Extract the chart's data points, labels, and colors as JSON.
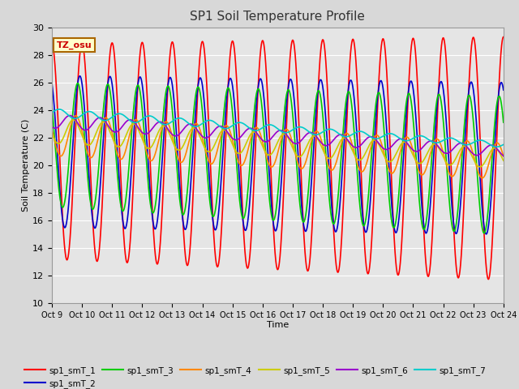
{
  "title": "SP1 Soil Temperature Profile",
  "xlabel": "Time",
  "ylabel": "Soil Temperature (C)",
  "ylim": [
    10,
    30
  ],
  "xlim": [
    0,
    15
  ],
  "background_color": "#e5e5e5",
  "grid_color": "#ffffff",
  "annotation_text": "TZ_osu",
  "annotation_bg": "#ffffcc",
  "annotation_border": "#aa6600",
  "x_tick_labels": [
    "Oct 9",
    "Oct 10",
    "Oct 11",
    "Oct 12",
    "Oct 13",
    "Oct 14",
    "Oct 15",
    "Oct 16",
    "Oct 17",
    "Oct 18",
    "Oct 19",
    "Oct 20",
    "Oct 21",
    "Oct 22",
    "Oct 23",
    "Oct 24"
  ],
  "series_order": [
    "sp1_smT_1",
    "sp1_smT_2",
    "sp1_smT_3",
    "sp1_smT_4",
    "sp1_smT_5",
    "sp1_smT_6",
    "sp1_smT_7"
  ],
  "series": {
    "sp1_smT_1": {
      "color": "#ff0000",
      "lw": 1.2
    },
    "sp1_smT_2": {
      "color": "#0000cc",
      "lw": 1.2
    },
    "sp1_smT_3": {
      "color": "#00cc00",
      "lw": 1.2
    },
    "sp1_smT_4": {
      "color": "#ff8800",
      "lw": 1.2
    },
    "sp1_smT_5": {
      "color": "#cccc00",
      "lw": 1.2
    },
    "sp1_smT_6": {
      "color": "#9900cc",
      "lw": 1.2
    },
    "sp1_smT_7": {
      "color": "#00cccc",
      "lw": 1.2
    }
  },
  "legend_ncol": 6,
  "yticks": [
    10,
    12,
    14,
    16,
    18,
    20,
    22,
    24,
    26,
    28,
    30
  ]
}
